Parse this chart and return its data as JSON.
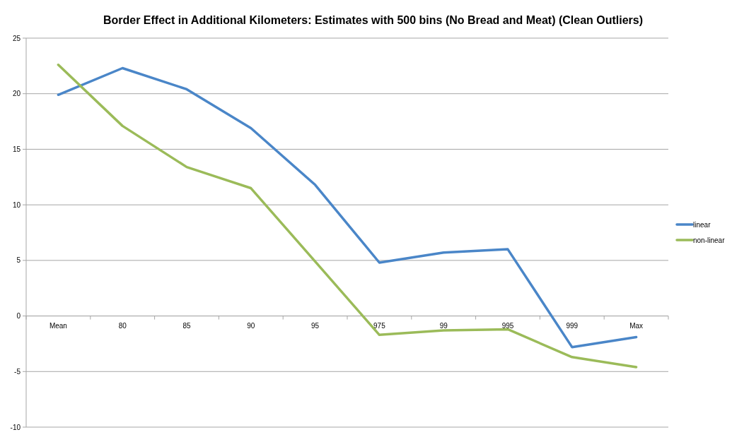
{
  "chart_data": {
    "type": "line",
    "title": "Border Effect in Additional Kilometers: Estimates with 500 bins (No Bread and Meat) (Clean Outliers)",
    "categories": [
      "Mean",
      "80",
      "85",
      "90",
      "95",
      "975",
      "99",
      "995",
      "999",
      "Max"
    ],
    "series": [
      {
        "name": "linear",
        "color": "#4a86c8",
        "values": [
          19.9,
          22.3,
          20.4,
          16.9,
          11.8,
          4.8,
          5.7,
          6.0,
          -2.8,
          -1.9
        ]
      },
      {
        "name": "non-linear",
        "color": "#9bbb59",
        "values": [
          22.6,
          17.1,
          13.4,
          11.5,
          4.9,
          -1.7,
          -1.3,
          -1.2,
          -3.7,
          -4.6
        ]
      }
    ],
    "ylim": [
      -10,
      25
    ],
    "yticks": [
      -10,
      -5,
      0,
      5,
      10,
      15,
      20,
      25
    ],
    "grid": "y",
    "legend": "right",
    "marker": "none",
    "line_style": "solid"
  }
}
